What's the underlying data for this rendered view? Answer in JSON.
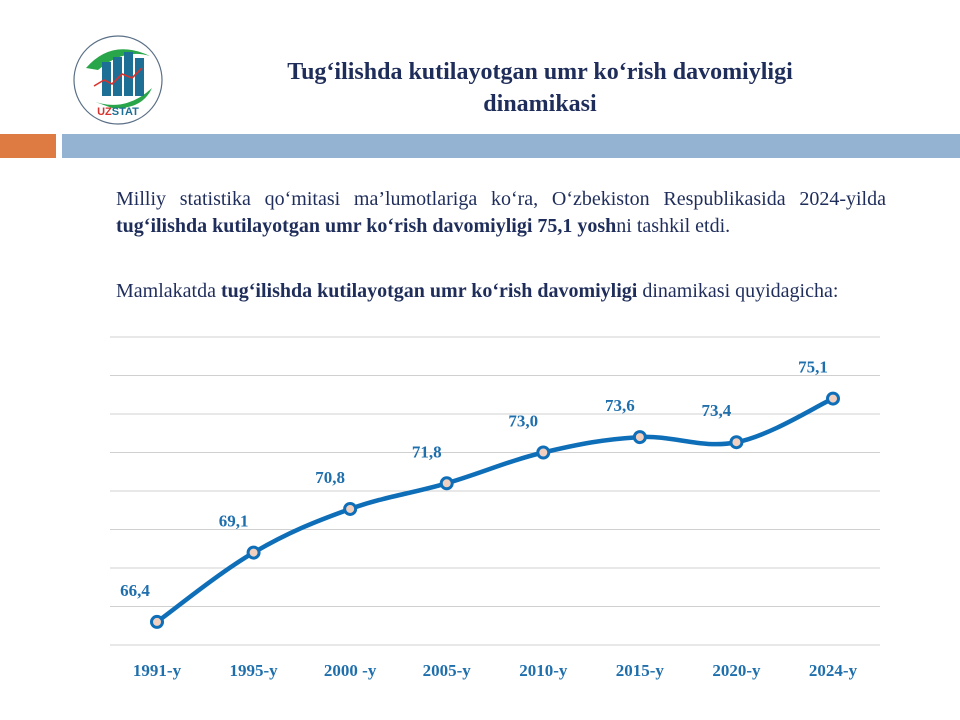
{
  "header": {
    "logo_text": "UZSTAT",
    "title_line1": "Tug‘ilishda kutilayotgan umr ko‘rish davomiyligi",
    "title_line2": "dinamikasi"
  },
  "paragraph1": {
    "text_a": "Milliy statistika qo‘mitasi ma’lumotlariga ko‘ra, O‘zbekiston Respublikasida 2024-yilda ",
    "bold": "tug‘ilishda kutilayotgan umr ko‘rish davomiyligi 75,1 yosh",
    "text_b": "ni tashkil etdi."
  },
  "paragraph2": {
    "text_a": "Mamlakatda ",
    "bold": "tug‘ilishda kutilayotgan umr ko‘rish davomiyligi",
    "text_b": " dinamikasi quyidagicha:"
  },
  "colors": {
    "line": "#0e6eb8",
    "marker_fill": "#f2d0c0",
    "label": "#1f6fad",
    "grid": "#d0d0d0",
    "title": "#1f2d5a",
    "accent_orange": "#dd7b43",
    "accent_blue": "#94b3d3"
  },
  "chart_data": {
    "type": "line",
    "title": "Tug‘ilishda kutilayotgan umr ko‘rish davomiyligi dinamikasi",
    "xlabel": "",
    "ylabel": "",
    "categories": [
      "1991-y",
      "1995-y",
      "2000 -y",
      "2005-y",
      "2010-y",
      "2015-y",
      "2020-y",
      "2024-y"
    ],
    "series": [
      {
        "name": "Tug‘ilishda kutilayotgan umr ko‘rish davomiyligi",
        "values": [
          66.4,
          69.1,
          70.8,
          71.8,
          73.0,
          73.6,
          73.4,
          75.1
        ],
        "labels": [
          "66,4",
          "69,1",
          "70,8",
          "71,8",
          "73,0",
          "73,6",
          "73,4",
          "75,1"
        ]
      }
    ],
    "ylim": [
      65.5,
      77.5
    ],
    "grid": true,
    "grid_step": 1.5,
    "legend": "none",
    "smooth": true
  }
}
